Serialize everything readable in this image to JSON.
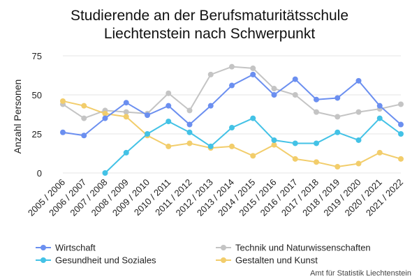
{
  "chart_data": {
    "type": "line",
    "title": "Studierende an der Berufsmaturitätsschule Liechtenstein nach Schwerpunkt",
    "title_lines": [
      "Studierende an der Berufsmaturitätsschule",
      "Liechtenstein nach Schwerpunkt"
    ],
    "xlabel": "",
    "ylabel": "Anzahl Personen",
    "ylim": [
      0,
      75
    ],
    "yticks": [
      0,
      25,
      50,
      75
    ],
    "grid": true,
    "legend_position": "bottom",
    "categories": [
      "2005 / 2006",
      "2006 / 2007",
      "2007 / 2008",
      "2008 / 2009",
      "2009 / 2010",
      "2010 / 2011",
      "2011 / 2012",
      "2012 / 2013",
      "2013 / 2014",
      "2014 / 2015",
      "2015 / 2016",
      "2016 / 2017",
      "2017 / 2018",
      "2018 / 2019",
      "2019 / 2020",
      "2020 / 2021",
      "2021 / 2022"
    ],
    "series": [
      {
        "name": "Wirtschaft",
        "color": "#6b8ff0",
        "values": [
          26,
          24,
          35,
          45,
          37,
          43,
          31,
          43,
          56,
          63,
          50,
          60,
          47,
          48,
          59,
          43,
          31
        ]
      },
      {
        "name": "Technik und Naturwissenschaften",
        "color": "#c4c4c4",
        "values": [
          44,
          35,
          40,
          39,
          38,
          51,
          40,
          63,
          68,
          67,
          54,
          50,
          39,
          36,
          39,
          41,
          44
        ]
      },
      {
        "name": "Gesundheit und Soziales",
        "color": "#43c2e6",
        "values": [
          null,
          null,
          0,
          13,
          25,
          33,
          26,
          17,
          29,
          35,
          21,
          19,
          19,
          26,
          21,
          35,
          25
        ]
      },
      {
        "name": "Gestalten und Kunst",
        "color": "#f2cd6b",
        "values": [
          46,
          43,
          38,
          36,
          24,
          17,
          19,
          16,
          17,
          11,
          18,
          9,
          7,
          4,
          6,
          13,
          9
        ]
      }
    ],
    "source": "Amt für Statistik Liechtenstein"
  }
}
